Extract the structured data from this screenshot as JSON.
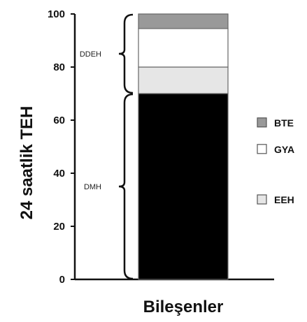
{
  "chart_data": {
    "type": "bar",
    "stacked": true,
    "xlabel": "Bileşenler",
    "ylabel": "24 saatlik TEH",
    "ylim": [
      0,
      100
    ],
    "yticks": [
      0,
      20,
      40,
      60,
      80,
      100
    ],
    "categories": [
      ""
    ],
    "series": [
      {
        "name": "",
        "values": [
          70
        ],
        "color": "#000000"
      },
      {
        "name": "EEH",
        "values": [
          10
        ],
        "color": "#e6e6e6"
      },
      {
        "name": "GYA",
        "values": [
          14.5
        ],
        "color": "#ffffff"
      },
      {
        "name": "BTE",
        "values": [
          5.5
        ],
        "color": "#999999"
      }
    ],
    "legend": {
      "placement": "right",
      "items": [
        {
          "label": "BTE",
          "color": "#999999"
        },
        {
          "label": "GYA",
          "color": "#ffffff"
        },
        {
          "label": "EEH",
          "color": "#e6e6e6"
        }
      ]
    },
    "brackets": [
      {
        "label": "DDEH",
        "from": 70,
        "to": 100
      },
      {
        "label": "DMH",
        "from": 0,
        "to": 70
      }
    ],
    "grid": false
  }
}
